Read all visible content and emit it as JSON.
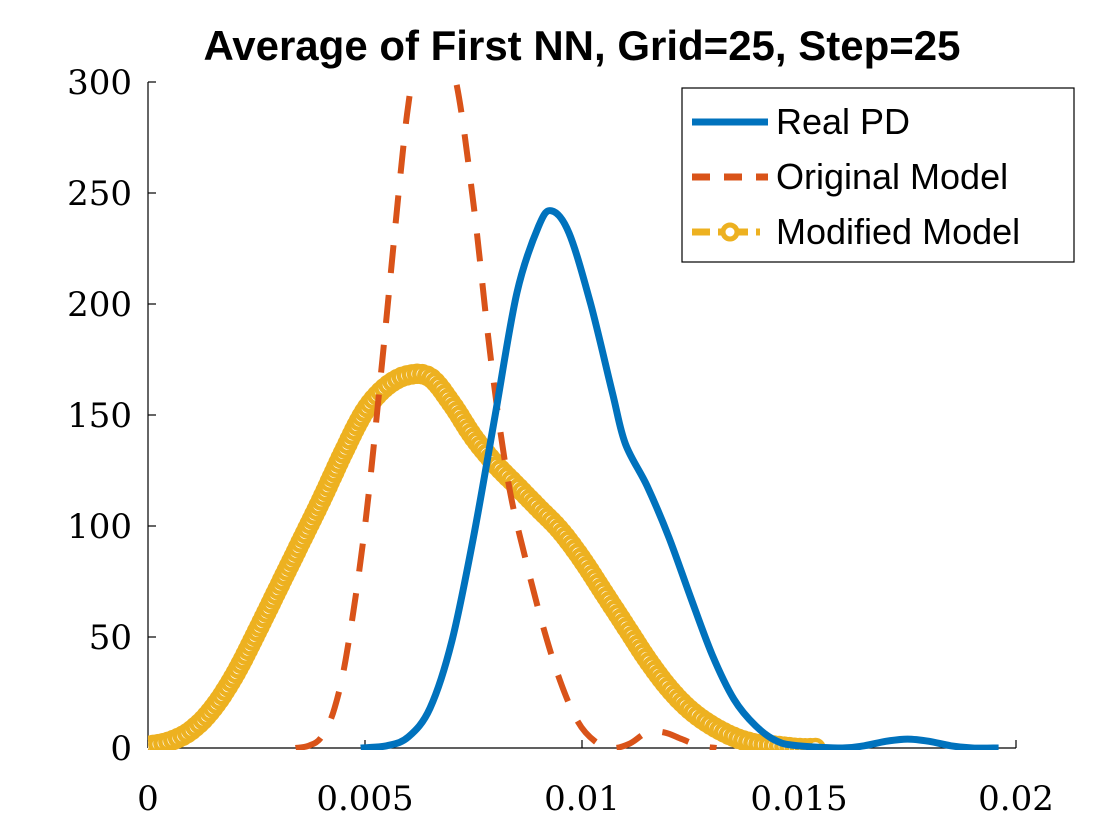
{
  "chart_data": {
    "type": "line",
    "title": "Average of First NN, Grid=25, Step=25",
    "xlabel": "",
    "ylabel": "",
    "xlim": [
      0,
      0.02
    ],
    "ylim": [
      0,
      300
    ],
    "x_ticks": [
      0,
      0.005,
      0.01,
      0.015,
      0.02
    ],
    "x_tick_labels": [
      "0",
      "0.005",
      "0.01",
      "0.015",
      "0.02"
    ],
    "y_ticks": [
      0,
      50,
      100,
      150,
      200,
      250,
      300
    ],
    "y_tick_labels": [
      "0",
      "50",
      "100",
      "150",
      "200",
      "250",
      "300"
    ],
    "grid": false,
    "legend_position": "top-right",
    "series": [
      {
        "name": "Real PD",
        "style": "solid",
        "color": "#0072BD",
        "points": [
          [
            0.0049,
            0
          ],
          [
            0.0055,
            1
          ],
          [
            0.006,
            5
          ],
          [
            0.0065,
            18
          ],
          [
            0.007,
            48
          ],
          [
            0.0075,
            95
          ],
          [
            0.008,
            150
          ],
          [
            0.0085,
            205
          ],
          [
            0.009,
            235
          ],
          [
            0.0093,
            242
          ],
          [
            0.0097,
            232
          ],
          [
            0.0102,
            200
          ],
          [
            0.0107,
            160
          ],
          [
            0.011,
            137
          ],
          [
            0.0115,
            118
          ],
          [
            0.012,
            95
          ],
          [
            0.0125,
            68
          ],
          [
            0.013,
            42
          ],
          [
            0.0135,
            22
          ],
          [
            0.014,
            10
          ],
          [
            0.0145,
            3
          ],
          [
            0.015,
            1
          ],
          [
            0.016,
            0
          ],
          [
            0.0165,
            1
          ],
          [
            0.017,
            3
          ],
          [
            0.0175,
            4
          ],
          [
            0.018,
            3
          ],
          [
            0.0185,
            1
          ],
          [
            0.019,
            0
          ],
          [
            0.0196,
            0
          ]
        ]
      },
      {
        "name": "Original Model",
        "style": "dashed",
        "color": "#D95319",
        "points": [
          [
            0.0034,
            0
          ],
          [
            0.0037,
            1
          ],
          [
            0.004,
            5
          ],
          [
            0.0043,
            18
          ],
          [
            0.0046,
            45
          ],
          [
            0.005,
            100
          ],
          [
            0.0054,
            175
          ],
          [
            0.0058,
            255
          ],
          [
            0.006,
            290
          ],
          [
            0.0062,
            310
          ],
          [
            0.0067,
            320
          ],
          [
            0.0071,
            300
          ],
          [
            0.0075,
            245
          ],
          [
            0.0079,
            175
          ],
          [
            0.0083,
            120
          ],
          [
            0.0087,
            85
          ],
          [
            0.0091,
            55
          ],
          [
            0.0095,
            30
          ],
          [
            0.0099,
            12
          ],
          [
            0.0103,
            3
          ],
          [
            0.0107,
            0
          ],
          [
            0.0111,
            2
          ],
          [
            0.0115,
            7
          ],
          [
            0.0119,
            7
          ],
          [
            0.0123,
            4
          ],
          [
            0.0127,
            1
          ],
          [
            0.0131,
            0
          ]
        ]
      },
      {
        "name": "Modified Model",
        "style": "dash-dot-circles",
        "color": "#EDB120",
        "points": [
          [
            0.0,
            1
          ],
          [
            0.0005,
            3
          ],
          [
            0.001,
            8
          ],
          [
            0.0015,
            18
          ],
          [
            0.002,
            33
          ],
          [
            0.0025,
            52
          ],
          [
            0.003,
            72
          ],
          [
            0.0035,
            92
          ],
          [
            0.004,
            112
          ],
          [
            0.0045,
            133
          ],
          [
            0.005,
            152
          ],
          [
            0.0055,
            163
          ],
          [
            0.006,
            168
          ],
          [
            0.0065,
            167
          ],
          [
            0.007,
            155
          ],
          [
            0.0075,
            140
          ],
          [
            0.008,
            128
          ],
          [
            0.0085,
            118
          ],
          [
            0.009,
            108
          ],
          [
            0.0095,
            98
          ],
          [
            0.01,
            85
          ],
          [
            0.0105,
            70
          ],
          [
            0.011,
            55
          ],
          [
            0.0115,
            40
          ],
          [
            0.012,
            27
          ],
          [
            0.0125,
            17
          ],
          [
            0.013,
            10
          ],
          [
            0.0135,
            5
          ],
          [
            0.014,
            2
          ],
          [
            0.0145,
            1
          ],
          [
            0.015,
            0
          ],
          [
            0.0154,
            0
          ]
        ]
      }
    ]
  }
}
